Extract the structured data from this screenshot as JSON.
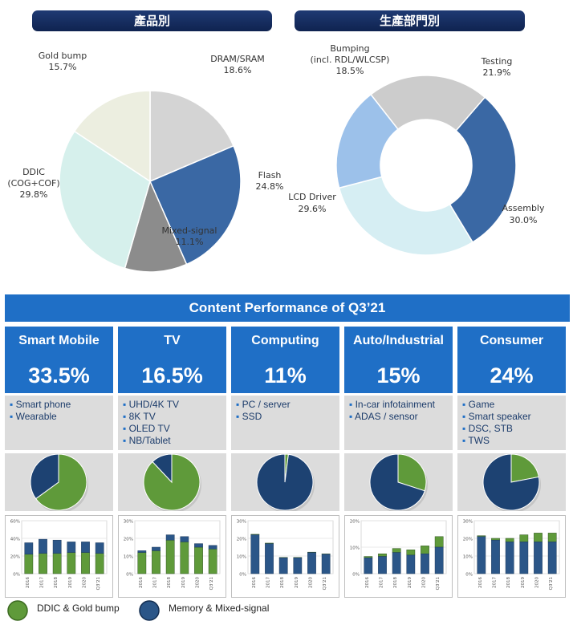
{
  "headers": {
    "left": "產品別",
    "right": "生產部門別"
  },
  "chart_data": [
    {
      "type": "pie",
      "title": "產品別",
      "slices": [
        {
          "name": "DRAM/SRAM",
          "value": 18.6,
          "label": "18.6%",
          "color": "#d4d4d4"
        },
        {
          "name": "Flash",
          "value": 24.8,
          "label": "24.8%",
          "color": "#3a68a4"
        },
        {
          "name": "Mixed-signal",
          "value": 11.1,
          "label": "11.1%",
          "color": "#8c8c8c"
        },
        {
          "name": "DDIC (COG+COF)",
          "value": 29.8,
          "label": "29.8%",
          "color": "#d6f0ec"
        },
        {
          "name": "Gold bump",
          "value": 15.7,
          "label": "15.7%",
          "color": "#eceee0"
        }
      ]
    },
    {
      "type": "pie",
      "title": "生產部門別",
      "donut": true,
      "slices": [
        {
          "name": "Testing",
          "value": 21.9,
          "label": "21.9%",
          "color": "#cccccc"
        },
        {
          "name": "Assembly",
          "value": 30.0,
          "label": "30.0%",
          "color": "#3a68a4"
        },
        {
          "name": "LCD Driver",
          "value": 29.6,
          "label": "29.6%",
          "color": "#d6eef3"
        },
        {
          "name": "Bumping (incl. RDL/WLCSP)",
          "value": 18.5,
          "label": "18.5%",
          "color": "#9cc1ea"
        }
      ]
    },
    {
      "type": "bar",
      "title": "Smart Mobile",
      "categories": [
        "2016",
        "2017",
        "2018",
        "2019",
        "2020",
        "Q3'21"
      ],
      "series": [
        {
          "name": "DDIC & Gold bump",
          "values": [
            22,
            23,
            23,
            24,
            24,
            23
          ]
        },
        {
          "name": "Memory & Mixed-signal",
          "values": [
            13,
            16,
            15,
            12,
            12,
            12
          ]
        }
      ],
      "ylim": [
        0,
        60
      ],
      "yticks": [
        "0%",
        "20%",
        "40%",
        "60%"
      ]
    },
    {
      "type": "bar",
      "title": "TV",
      "categories": [
        "2016",
        "2017",
        "2018",
        "2019",
        "2020",
        "Q3'21"
      ],
      "series": [
        {
          "name": "DDIC & Gold bump",
          "values": [
            12,
            13,
            19,
            18,
            15,
            14
          ]
        },
        {
          "name": "Memory & Mixed-signal",
          "values": [
            1,
            2,
            3,
            3,
            2,
            2
          ]
        }
      ],
      "ylim": [
        0,
        30
      ],
      "yticks": [
        "0%",
        "10%",
        "20%",
        "30%"
      ]
    },
    {
      "type": "bar",
      "title": "Computing",
      "categories": [
        "2016",
        "2017",
        "2018",
        "2019",
        "2020",
        "Q3'21"
      ],
      "series": [
        {
          "name": "DDIC & Gold bump",
          "values": [
            0.3,
            0.3,
            0.2,
            0.2,
            0.2,
            0.2
          ]
        },
        {
          "name": "Memory & Mixed-signal",
          "values": [
            22,
            17,
            9,
            9,
            12,
            11
          ]
        }
      ],
      "ylim": [
        0,
        30
      ],
      "yticks": [
        "0%",
        "10%",
        "20%",
        "30%"
      ]
    },
    {
      "type": "bar",
      "title": "Auto/Industrial",
      "categories": [
        "2016",
        "2017",
        "2018",
        "2019",
        "2020",
        "Q3'21"
      ],
      "series": [
        {
          "name": "DDIC & Gold bump",
          "values": [
            0.5,
            1,
            1.5,
            2,
            3,
            4
          ]
        },
        {
          "name": "Memory & Mixed-signal",
          "values": [
            6,
            6.5,
            8,
            7,
            7.5,
            10
          ]
        }
      ],
      "ylim": [
        0,
        20
      ],
      "yticks": [
        "0%",
        "10%",
        "20%"
      ]
    },
    {
      "type": "bar",
      "title": "Consumer",
      "categories": [
        "2016",
        "2017",
        "2018",
        "2019",
        "2020",
        "Q3'21"
      ],
      "series": [
        {
          "name": "DDIC & Gold bump",
          "values": [
            0.5,
            1,
            2,
            4,
            5,
            5
          ]
        },
        {
          "name": "Memory & Mixed-signal",
          "values": [
            21,
            19,
            18,
            18,
            18,
            18
          ]
        }
      ],
      "ylim": [
        0,
        30
      ],
      "yticks": [
        "0%",
        "10%",
        "20%",
        "30%"
      ]
    }
  ],
  "banner": "Content Performance of Q3’21",
  "segments": [
    {
      "name": "Smart Mobile",
      "pct": "33.5%",
      "items": [
        "Smart phone",
        "Wearable"
      ],
      "share_ddic": 65
    },
    {
      "name": "TV",
      "pct": "16.5%",
      "items": [
        "UHD/4K TV",
        "8K TV",
        "OLED TV",
        "NB/Tablet"
      ],
      "share_ddic": 88
    },
    {
      "name": "Computing",
      "pct": "11%",
      "items": [
        "PC / server",
        "SSD"
      ],
      "share_ddic": 2
    },
    {
      "name": "Auto/Industrial",
      "pct": "15%",
      "items": [
        "In-car infotainment",
        "ADAS / sensor"
      ],
      "share_ddic": 30
    },
    {
      "name": "Consumer",
      "pct": "24%",
      "items": [
        "Game",
        "Smart speaker",
        "DSC, STB",
        "TWS"
      ],
      "share_ddic": 22
    }
  ],
  "legend": {
    "ddic": "DDIC & Gold bump",
    "memory": "Memory & Mixed-signal"
  },
  "colors": {
    "green": "#5f9a3a",
    "blue": "#2b5688",
    "blue_dark": "#1d4272"
  }
}
